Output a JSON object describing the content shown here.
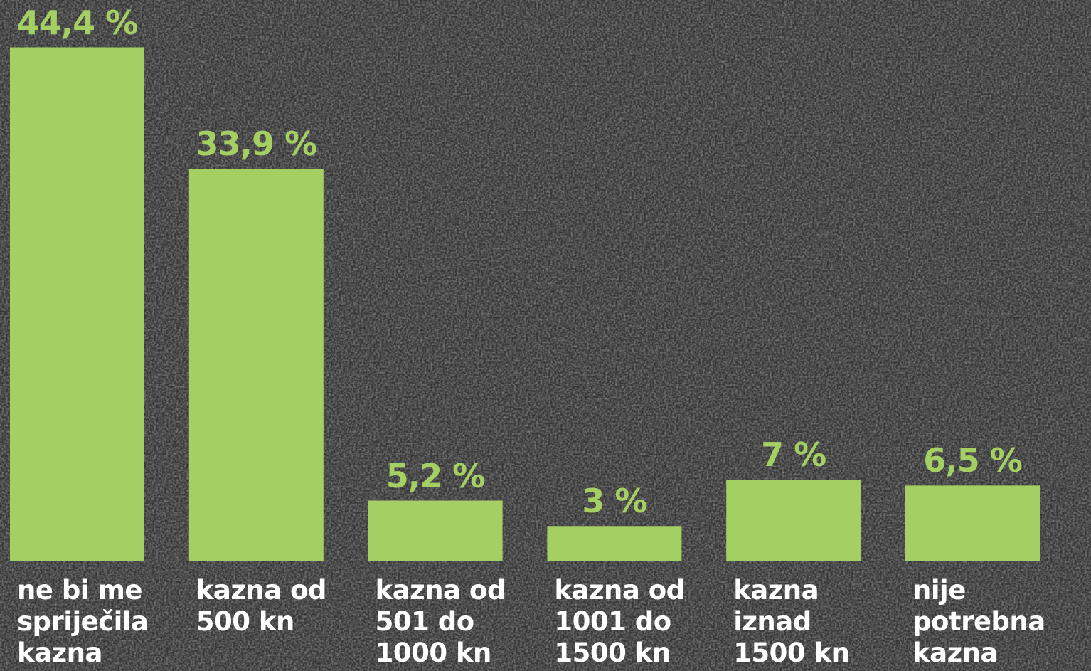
{
  "chart_data": {
    "type": "bar",
    "categories": [
      "ne bi me spriječila kazna",
      "kazna od 500 kn",
      "kazna od 501 do 1000 kn",
      "kazna od 1001 do 1500 kn",
      "kazna iznad 1500 kn",
      "nije potrebna kazna"
    ],
    "values": [
      44.4,
      33.9,
      5.2,
      3,
      7,
      6.5
    ],
    "value_labels": [
      "44,4 %",
      "33,9 %",
      "5,2 %",
      "3 %",
      "7 %",
      "6,5 %"
    ],
    "color": "#a4cf62",
    "ylim": [
      0,
      48
    ]
  }
}
